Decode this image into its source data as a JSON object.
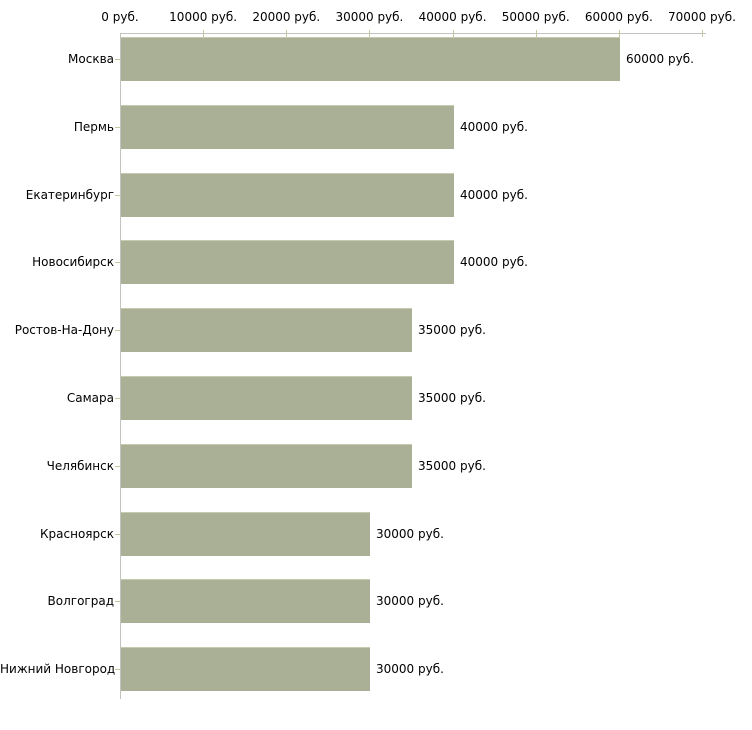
{
  "chart_data": {
    "type": "bar",
    "orientation": "horizontal",
    "title": "",
    "categories": [
      "Москва",
      "Пермь",
      "Екатеринбург",
      "Новосибирск",
      "Ростов-На-Дону",
      "Самара",
      "Челябинск",
      "Красноярск",
      "Волгоград",
      "Нижний Новгород"
    ],
    "values": [
      60000,
      40000,
      40000,
      40000,
      35000,
      35000,
      35000,
      30000,
      30000,
      30000
    ],
    "value_labels": [
      "60000 руб.",
      "40000 руб.",
      "40000 руб.",
      "40000 руб.",
      "35000 руб.",
      "35000 руб.",
      "35000 руб.",
      "30000 руб.",
      "30000 руб.",
      "30000 руб."
    ],
    "x_axis": {
      "position": "top",
      "range": [
        0,
        70000
      ],
      "ticks": [
        0,
        10000,
        20000,
        30000,
        40000,
        50000,
        60000,
        70000
      ],
      "tick_labels": [
        "0 руб.",
        "10000 руб.",
        "20000 руб.",
        "30000 руб.",
        "40000 руб.",
        "50000 руб.",
        "60000 руб.",
        "70000 руб."
      ]
    },
    "unit_suffix": " руб.",
    "grid": false,
    "legend": null,
    "colors": {
      "bar_fill": "#aab095",
      "bar_border": "#c6caaf",
      "axis_line": "#c3c3bd",
      "tick_mark": "#c6c79f",
      "text": "#000000",
      "background": "#ffffff"
    }
  }
}
